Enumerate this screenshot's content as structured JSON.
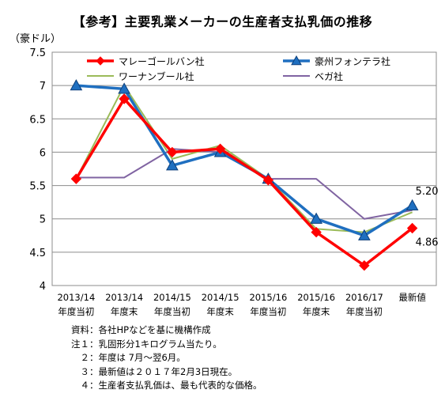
{
  "chart_data": {
    "type": "line",
    "title": "【参考】主要乳業メーカーの生産者支払乳価の推移",
    "ylabel": "（豪ドル）",
    "ylim": [
      4,
      7.5
    ],
    "yticks": [
      "4",
      "4.5",
      "5",
      "5.5",
      "6",
      "6.5",
      "7",
      "7.5"
    ],
    "ytick_values": [
      4,
      4.5,
      5,
      5.5,
      6,
      6.5,
      7,
      7.5
    ],
    "grid": true,
    "legend": "top",
    "categories": [
      [
        "2013/14",
        "年度当初"
      ],
      [
        "2013/14",
        "年度末"
      ],
      [
        "2014/15",
        "年度当初"
      ],
      [
        "2014/15",
        "年度末"
      ],
      [
        "2015/16",
        "年度当初"
      ],
      [
        "2015/16",
        "年度末"
      ],
      [
        "2016/17",
        "年度当初"
      ],
      [
        "最新値",
        ""
      ]
    ],
    "series": [
      {
        "name": "マレーゴールバン社",
        "color": "#ff0000",
        "marker": "diamond",
        "markerColor": "#ff0000",
        "width": 3.5,
        "values": [
          5.6,
          6.8,
          6.0,
          6.05,
          5.58,
          4.8,
          4.3,
          4.86
        ]
      },
      {
        "name": "豪州フォンテラ社",
        "color": "#1f6fc0",
        "marker": "triangle",
        "markerColor": "#1f6fc0",
        "width": 3.5,
        "values": [
          7.0,
          6.95,
          5.8,
          6.0,
          5.6,
          5.0,
          4.75,
          5.2
        ]
      },
      {
        "name": "ワーナンブール社",
        "color": "#9bbb59",
        "marker": "none",
        "width": 2,
        "values": [
          5.6,
          7.0,
          5.9,
          6.1,
          5.6,
          4.85,
          4.8,
          5.1
        ]
      },
      {
        "name": "ベガ社",
        "color": "#8064a2",
        "marker": "none",
        "width": 2,
        "values": [
          5.62,
          5.62,
          6.05,
          6.0,
          5.6,
          5.6,
          5.0,
          5.13
        ]
      }
    ],
    "data_labels": [
      {
        "text": "5.20",
        "series": 1,
        "index": 7
      },
      {
        "text": "4.86",
        "series": 0,
        "index": 7
      }
    ]
  },
  "notes": [
    "資料：各社HPなどを基に機構作成",
    "注１：乳固形分1キログラム当たり。",
    "　２：年度は 7月～翌6月。",
    "　３：最新値は２０１７年2月3日現在。",
    "　４：生産者支払乳価は、最も代表的な価格。"
  ]
}
